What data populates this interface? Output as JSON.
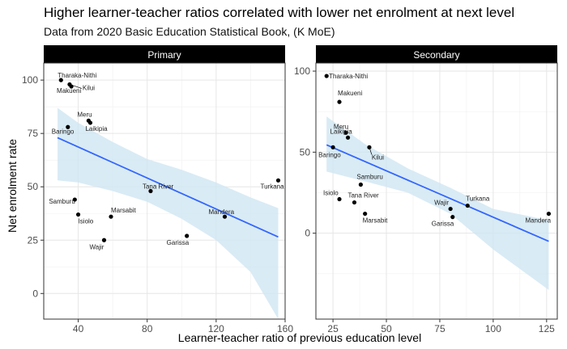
{
  "chart_data": {
    "type": "scatter",
    "title": "Higher learner-teacher ratios correlated with lower net enrolment at next level",
    "subtitle": "Data from 2020 Basic Education Statistical Book, (K MoE)",
    "xlabel": "Learner-teacher ratio of previous education level",
    "ylabel": "Net enrolment rate",
    "colors": {
      "line": "#3366ff",
      "band": "#cfe6f2",
      "point": "#000000",
      "strip": "#000000",
      "grid": "#e6e6e6"
    },
    "panels": [
      {
        "strip": "Primary",
        "xlim": [
          20,
          160
        ],
        "ylim": [
          -12,
          108
        ],
        "xticks": [
          40,
          80,
          120,
          160
        ],
        "yticks": [
          0,
          25,
          50,
          75,
          100
        ],
        "trend": {
          "x": [
            28,
            156
          ],
          "y": [
            73,
            26.5
          ]
        },
        "band": {
          "x": [
            28,
            40,
            60,
            80,
            100,
            120,
            140,
            156
          ],
          "upper": [
            87,
            80,
            71,
            63,
            58,
            52,
            45,
            40
          ],
          "lower": [
            53,
            52,
            48,
            43,
            35,
            25,
            10,
            -12
          ]
        },
        "points": [
          {
            "label": "Tharaka-Nithi",
            "x": 30,
            "y": 100
          },
          {
            "label": "Kilui",
            "x": 35,
            "y": 98
          },
          {
            "label": "Makueni",
            "x": 36,
            "y": 97
          },
          {
            "label": "Meru",
            "x": 46,
            "y": 81
          },
          {
            "label": "Laikipia",
            "x": 47,
            "y": 80
          },
          {
            "label": "Baringo",
            "x": 34,
            "y": 78
          },
          {
            "label": "Tana River",
            "x": 82,
            "y": 48
          },
          {
            "label": "Turkana",
            "x": 156,
            "y": 53
          },
          {
            "label": "Samburu",
            "x": 38,
            "y": 44
          },
          {
            "label": "Isiolo",
            "x": 40,
            "y": 37
          },
          {
            "label": "Marsabit",
            "x": 59,
            "y": 36
          },
          {
            "label": "Mandera",
            "x": 125,
            "y": 36
          },
          {
            "label": "Wajir",
            "x": 55,
            "y": 25
          },
          {
            "label": "Garissa",
            "x": 103,
            "y": 27
          }
        ]
      },
      {
        "strip": "Secondary",
        "xlim": [
          17,
          130
        ],
        "ylim": [
          -53,
          105
        ],
        "xticks": [
          25,
          50,
          75,
          100,
          125
        ],
        "yticks": [
          0,
          50,
          100
        ],
        "trend": {
          "x": [
            22,
            126
          ],
          "y": [
            54.5,
            -5
          ]
        },
        "band": {
          "x": [
            22,
            40,
            60,
            80,
            100,
            126
          ],
          "upper": [
            72,
            55,
            40,
            28,
            15,
            8
          ],
          "lower": [
            38,
            32,
            25,
            12,
            -10,
            -35
          ]
        },
        "points": [
          {
            "label": "Tharaka-Nithi",
            "x": 22,
            "y": 97
          },
          {
            "label": "Makueni",
            "x": 28,
            "y": 81
          },
          {
            "label": "Meru",
            "x": 31,
            "y": 62
          },
          {
            "label": "Laikipia",
            "x": 32,
            "y": 59
          },
          {
            "label": "Kilui",
            "x": 42,
            "y": 53
          },
          {
            "label": "Baringo",
            "x": 25,
            "y": 53
          },
          {
            "label": "Samburu",
            "x": 38,
            "y": 30
          },
          {
            "label": "Isiolo",
            "x": 28,
            "y": 21
          },
          {
            "label": "Tana River",
            "x": 35,
            "y": 19
          },
          {
            "label": "Marsabit",
            "x": 40,
            "y": 12
          },
          {
            "label": "Wajir",
            "x": 80,
            "y": 15
          },
          {
            "label": "Garissa",
            "x": 81,
            "y": 10
          },
          {
            "label": "Turkana",
            "x": 88,
            "y": 17
          },
          {
            "label": "Mandera",
            "x": 126,
            "y": 12
          }
        ]
      }
    ]
  }
}
